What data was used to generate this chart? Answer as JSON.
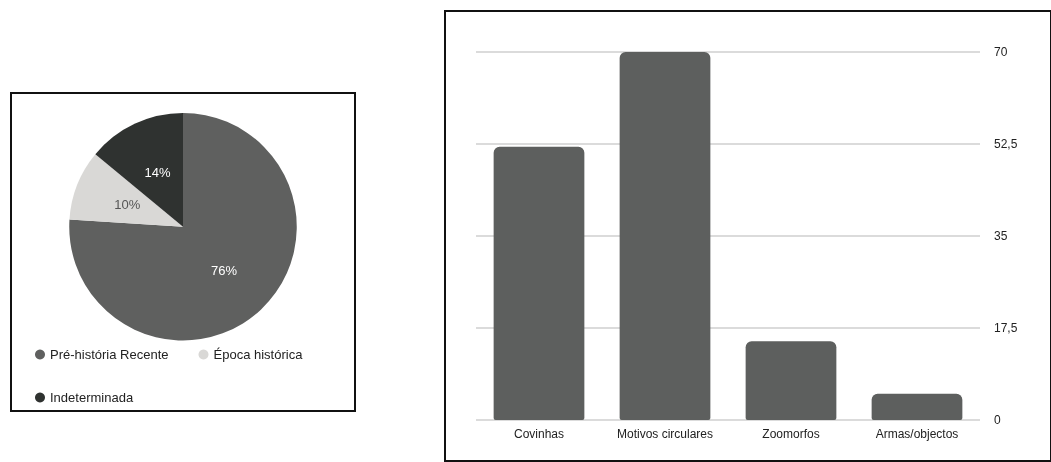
{
  "chart_data": [
    {
      "type": "pie",
      "categories": [
        "Pré-história Recente",
        "Época histórica",
        "Indeterminada"
      ],
      "values": [
        76,
        10,
        14
      ],
      "colors": [
        "#5f605f",
        "#d9d8d6",
        "#2f3230"
      ],
      "value_labels": [
        "76%",
        "10%",
        "14%"
      ],
      "legend": "bottom"
    },
    {
      "type": "bar",
      "categories": [
        "Covinhas",
        "Motivos circulares",
        "Zoomorfos",
        "Armas/objectos"
      ],
      "values": [
        52,
        70,
        15,
        5
      ],
      "color": "#5d5f5e",
      "ylim": [
        0,
        70
      ],
      "yticks": [
        0,
        {
          "value": 17.5,
          "label": "17,5"
        },
        35,
        {
          "value": 52.5,
          "label": "52,5"
        },
        70
      ],
      "grid": "y"
    }
  ]
}
